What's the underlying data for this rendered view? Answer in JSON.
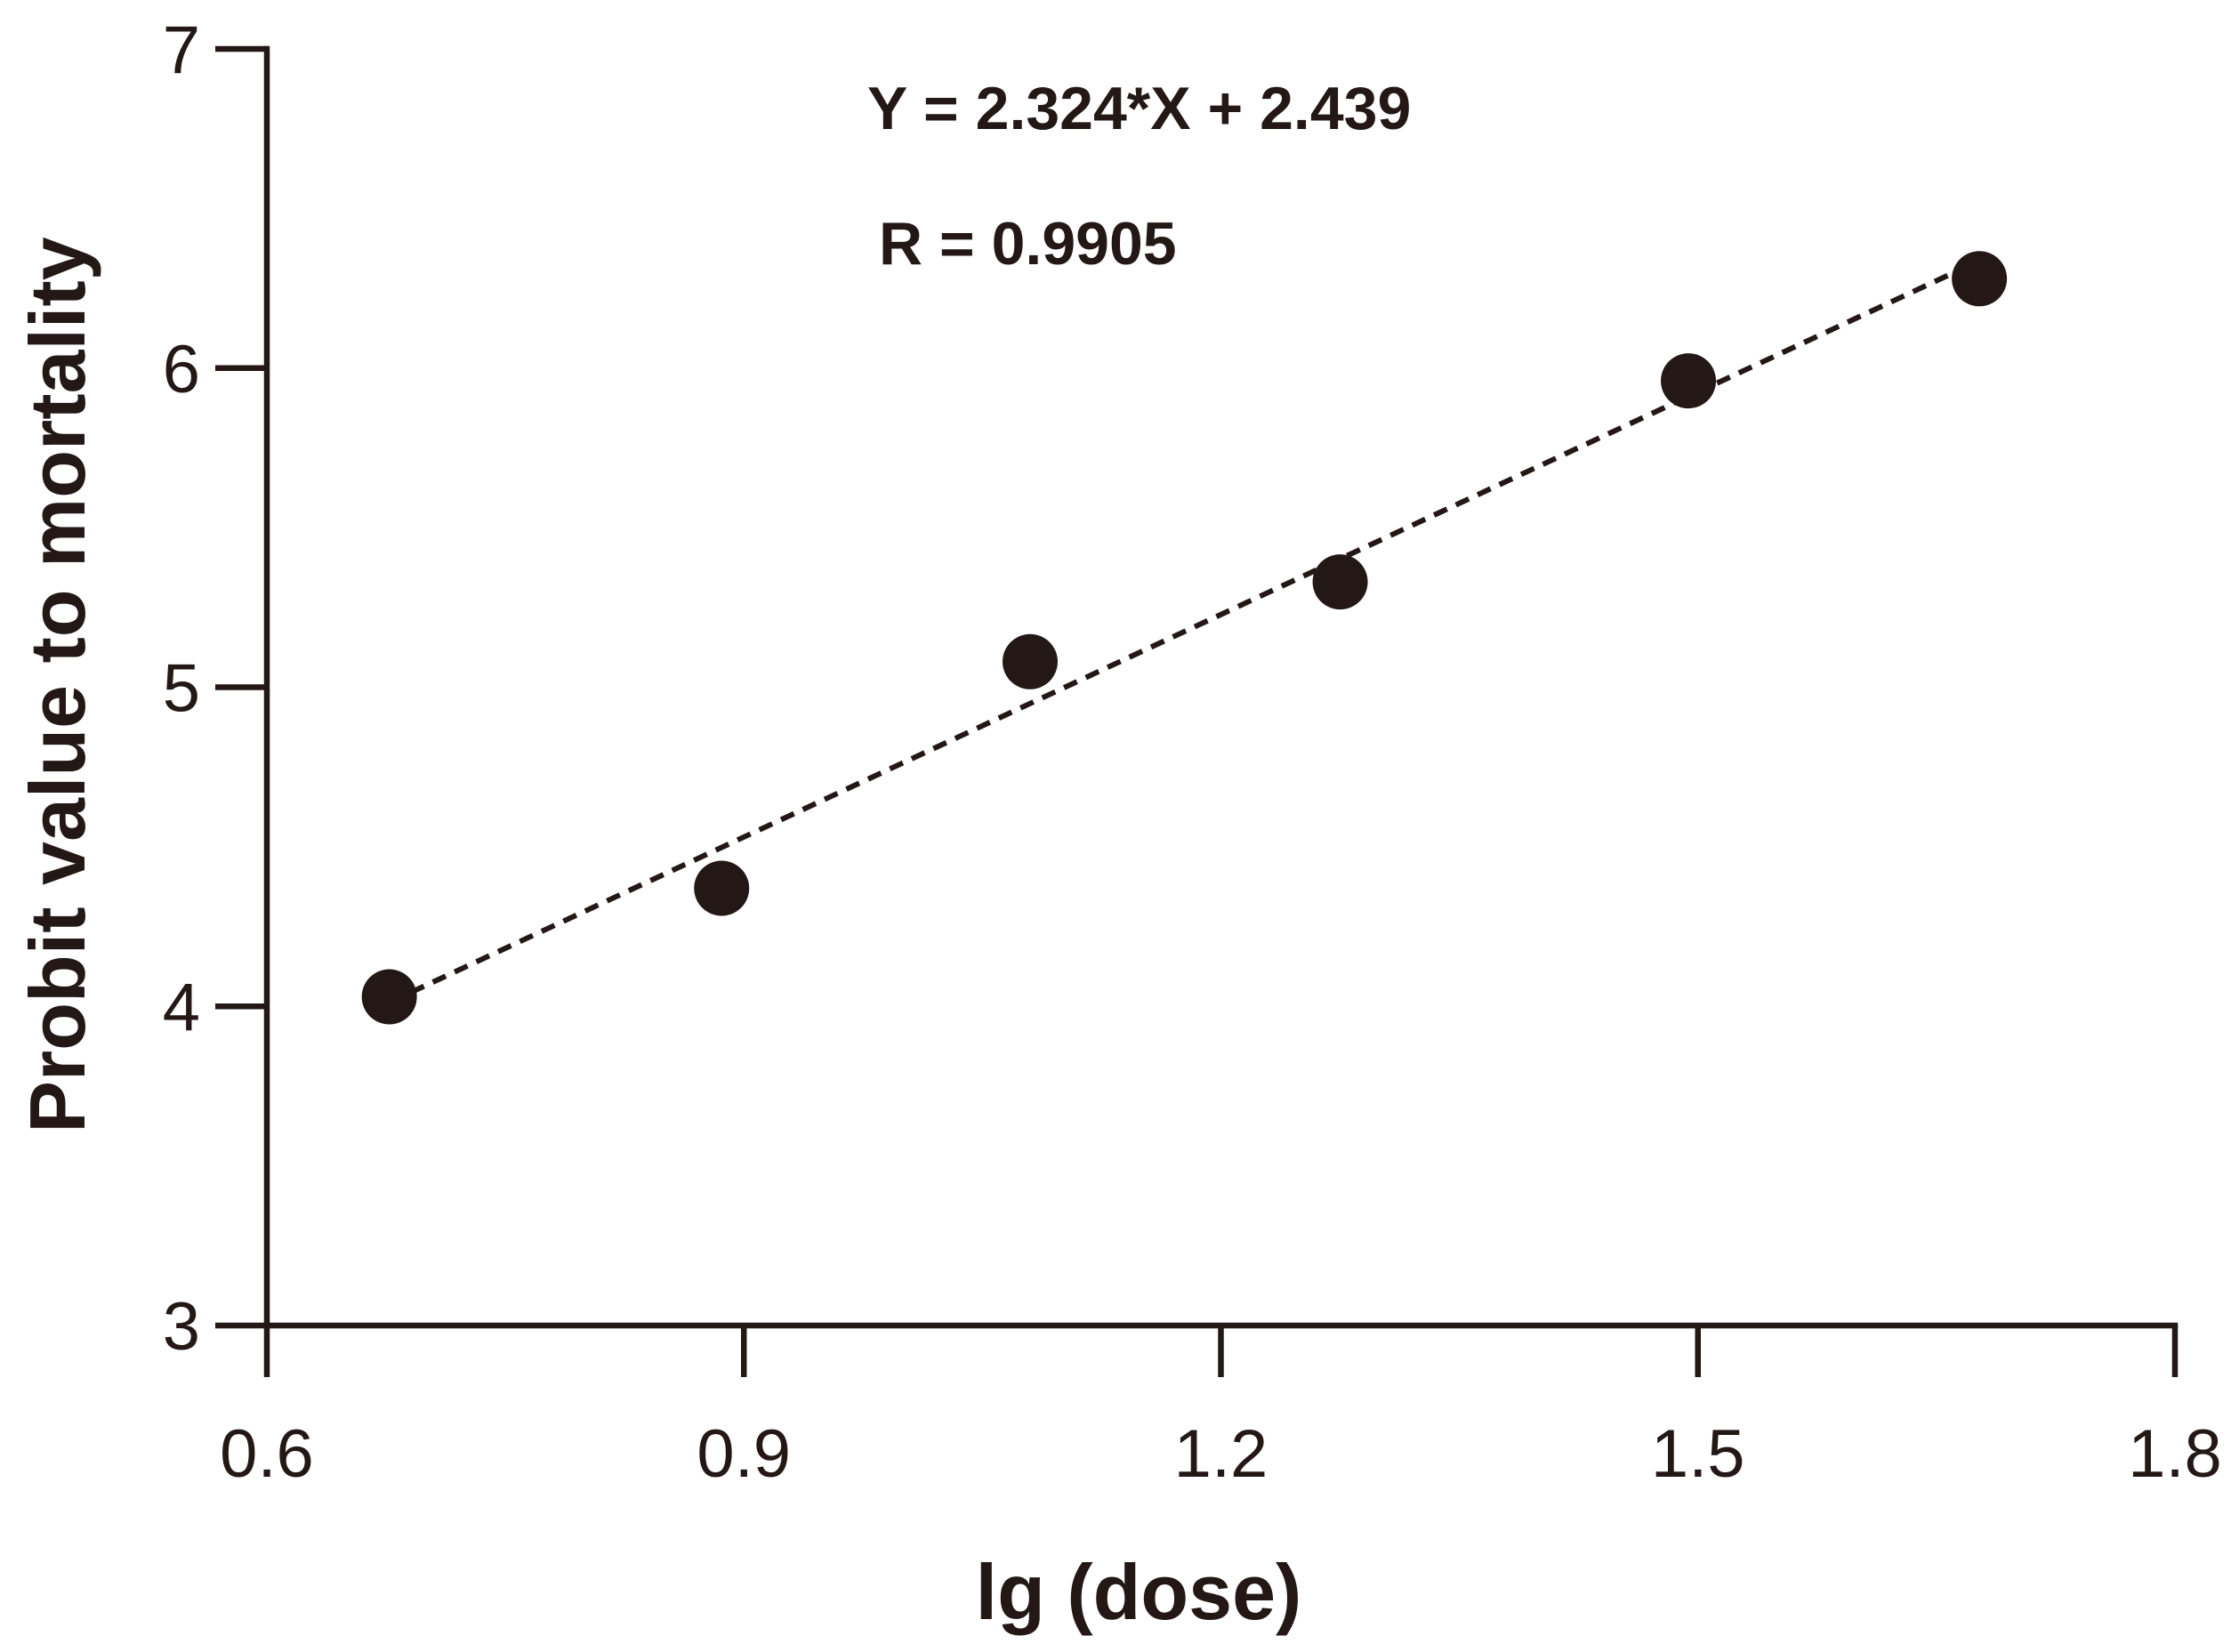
{
  "chart_data": {
    "type": "scatter",
    "title": "",
    "xlabel": "lg (dose)",
    "ylabel": "Probit value to mortality",
    "xlim": [
      0.6,
      1.8
    ],
    "ylim": [
      3,
      7
    ],
    "x_ticks": [
      0.6,
      0.9,
      1.2,
      1.5,
      1.8
    ],
    "x_tick_labels": [
      "0.6",
      "0.9",
      "1.2",
      "1.5",
      "1.8"
    ],
    "y_ticks": [
      3,
      4,
      5,
      6,
      7
    ],
    "y_tick_labels": [
      "3",
      "4",
      "5",
      "6",
      "7"
    ],
    "grid": false,
    "series": [
      {
        "points": [
          {
            "x": 0.677,
            "y": 4.03
          },
          {
            "x": 0.886,
            "y": 4.37
          },
          {
            "x": 1.08,
            "y": 5.08
          },
          {
            "x": 1.275,
            "y": 5.33
          },
          {
            "x": 1.494,
            "y": 5.96
          },
          {
            "x": 1.677,
            "y": 6.28
          }
        ],
        "color": "#231815"
      }
    ],
    "fit_line": {
      "slope": 2.324,
      "intercept": 2.439,
      "x_range": [
        0.677,
        1.677
      ],
      "style": "dashed"
    },
    "annotations": {
      "equation": "Y = 2.324*X + 2.439",
      "r_value": "R = 0.9905"
    }
  }
}
